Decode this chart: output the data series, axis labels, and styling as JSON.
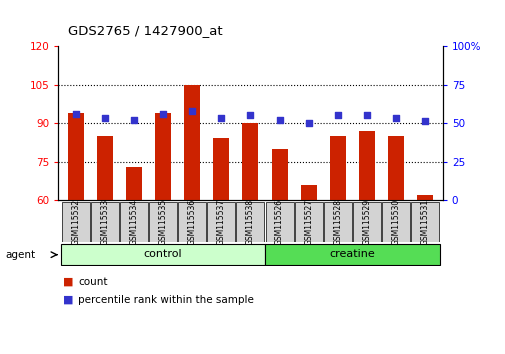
{
  "title": "GDS2765 / 1427900_at",
  "categories": [
    "GSM115532",
    "GSM115533",
    "GSM115534",
    "GSM115535",
    "GSM115536",
    "GSM115537",
    "GSM115538",
    "GSM115526",
    "GSM115527",
    "GSM115528",
    "GSM115529",
    "GSM115530",
    "GSM115531"
  ],
  "count_values": [
    94,
    85,
    73,
    94,
    105,
    84,
    90,
    80,
    66,
    85,
    87,
    85,
    62
  ],
  "percentile_values": [
    56,
    53,
    52,
    56,
    58,
    53,
    55,
    52,
    50,
    55,
    55,
    53,
    51
  ],
  "bar_color": "#cc2200",
  "dot_color": "#3333cc",
  "ylim_left": [
    60,
    120
  ],
  "ylim_right": [
    0,
    100
  ],
  "yticks_left": [
    60,
    75,
    90,
    105,
    120
  ],
  "yticks_right": [
    0,
    25,
    50,
    75,
    100
  ],
  "ytick_right_labels": [
    "0",
    "25",
    "50",
    "75",
    "100%"
  ],
  "grid_values": [
    75,
    90,
    105
  ],
  "n_control": 7,
  "control_color": "#ccffcc",
  "creatine_color": "#55dd55",
  "agent_label": "agent",
  "legend_count": "count",
  "legend_percentile": "percentile rank within the sample",
  "bar_bottom": 60
}
